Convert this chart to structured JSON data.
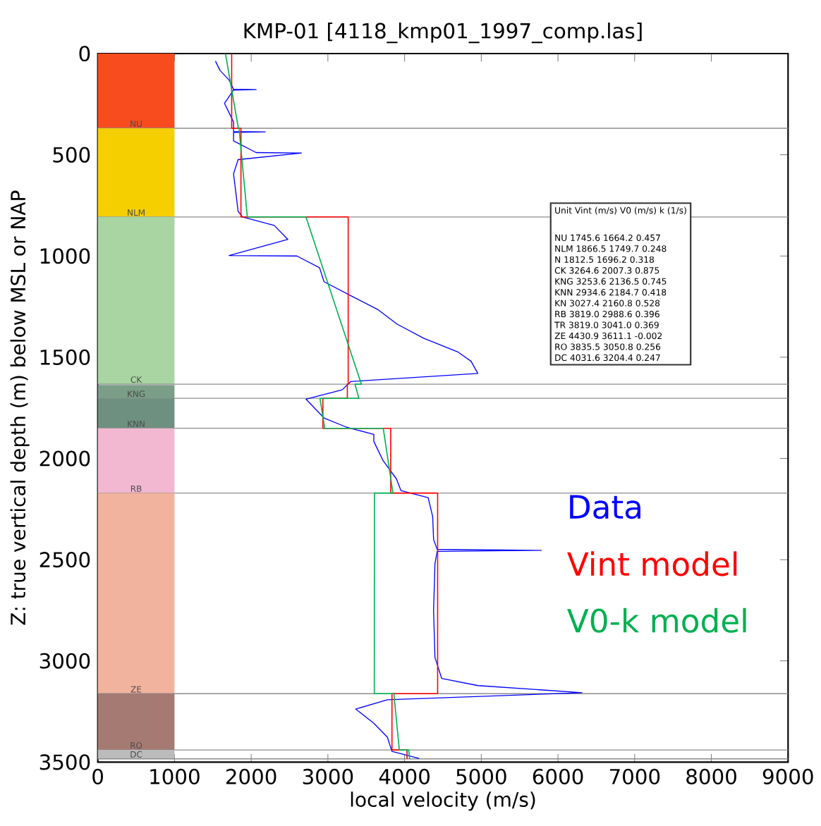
{
  "chart_data": {
    "type": "line",
    "title": "KMP-01 [4118_kmp01_1997_comp.las]",
    "xlabel": "local velocity (m/s)",
    "ylabel": "Z: true vertical depth (m) below MSL or NAP",
    "xlim": [
      0,
      9000
    ],
    "xticks": [
      0,
      1000,
      2000,
      3000,
      4000,
      5000,
      6000,
      7000,
      8000,
      9000
    ],
    "ylim": [
      3500,
      0
    ],
    "yticks": [
      0,
      500,
      1000,
      1500,
      2000,
      2500,
      3000,
      3500
    ],
    "legend": "right",
    "line_style": "solid",
    "marker": "none",
    "series": [
      {
        "name": "Data",
        "color": "#0000ff",
        "x": [
          1534,
          1593,
          1711,
          1770,
          2065,
          1770,
          1652,
          1711,
          1770,
          1770,
          2183,
          1770,
          1770,
          2065,
          2655,
          1829,
          1770,
          1800,
          1829,
          1888,
          2301,
          2478,
          1711,
          2596,
          2891,
          2950,
          3304,
          3658,
          3900,
          4248,
          4700,
          4867,
          4955,
          3300,
          3186,
          2714,
          2832,
          2950,
          3245,
          3599,
          3599,
          3717,
          3894,
          3953,
          4307,
          4366,
          4378,
          4425,
          5782,
          4425,
          4396,
          4378,
          4396,
          4484,
          4956,
          6313,
          3776,
          3363,
          3599,
          3776,
          3835,
          4189
        ],
        "values": [
          37,
          83,
          130,
          176,
          178,
          180,
          246,
          292,
          338,
          385,
          387,
          389,
          431,
          489,
          491,
          524,
          594,
          686,
          779,
          807,
          849,
          918,
          998,
          1000,
          1058,
          1127,
          1197,
          1266,
          1336,
          1406,
          1475,
          1520,
          1580,
          1620,
          1661,
          1707,
          1754,
          1800,
          1846,
          1881,
          1916,
          2009,
          2101,
          2159,
          2194,
          2287,
          2400,
          2449,
          2454,
          2459,
          2519,
          2751,
          2983,
          3087,
          3122,
          3157,
          3192,
          3238,
          3308,
          3377,
          3447,
          3482
        ]
      },
      {
        "name": "Vint model",
        "color": "#ff0000",
        "x": [
          1745.6,
          1745.6,
          1866.5,
          1866.5,
          3264.6,
          3264.6,
          3253.6,
          3253.6,
          2934.6,
          2934.6,
          3819.0,
          3819.0,
          4430.9,
          4430.9,
          3835.5,
          3835.5,
          4031.6,
          4031.6
        ],
        "values": [
          0,
          369,
          369,
          807,
          807,
          1633,
          1633,
          1703,
          1703,
          1851,
          1851,
          2171,
          2171,
          3162,
          3162,
          3440,
          3440,
          3484
        ]
      },
      {
        "name": "V0-k model",
        "color": "#00b050",
        "x": [
          1664.2,
          1832.8,
          1841.2,
          1949.8,
          2713.4,
          3436.2,
          3353.0,
          3404.2,
          2896.5,
          2958.4,
          3721.6,
          3848.3,
          3606.8,
          3604.8,
          3860.3,
          3931.4,
          4054.1,
          4065.0
        ],
        "values": [
          0,
          369,
          369,
          807,
          807,
          1633,
          1633,
          1703,
          1703,
          1851,
          1851,
          2171,
          2171,
          3162,
          3162,
          3440,
          3440,
          3484
        ]
      }
    ],
    "bands": [
      {
        "axis": "y",
        "from": 0,
        "to": 369,
        "label": "NU",
        "color": "#f84c1e"
      },
      {
        "axis": "y",
        "from": 369,
        "to": 807,
        "label": "NLM",
        "color": "#f5cf00"
      },
      {
        "axis": "y",
        "from": 807,
        "to": 1633,
        "label": "CK",
        "color": "#a8d5a2"
      },
      {
        "axis": "y",
        "from": 1637,
        "to": 1703,
        "label": "KNG",
        "color": "#7a9e88"
      },
      {
        "axis": "y",
        "from": 1703,
        "to": 1851,
        "label": "KNN",
        "color": "#6e9080"
      },
      {
        "axis": "y",
        "from": 1851,
        "to": 2171,
        "label": "RB",
        "color": "#f2b8d2"
      },
      {
        "axis": "y",
        "from": 2171,
        "to": 3162,
        "label": "ZE",
        "color": "#f2b39e"
      },
      {
        "axis": "y",
        "from": 3162,
        "to": 3440,
        "label": "RO",
        "color": "#a57a72"
      },
      {
        "axis": "y",
        "from": 3440,
        "to": 3484,
        "label": "DC",
        "color": "#bbbbbb"
      }
    ],
    "annotations": [
      "Unit    Vint (m/s)    V0 (m/s)    k (1/s)",
      "NU 1745.6 1664.2 0.457",
      "NLM 1866.5 1749.7 0.248",
      "N 1812.5 1696.2 0.318",
      "CK 3264.6 2007.3 0.875",
      "KNG 3253.6 2136.5 0.745",
      "KNN 2934.6 2184.7 0.418",
      "KN 3027.4 2160.8 0.528",
      "RB 3819.0 2988.6 0.396",
      "TR 3819.0 3041.0 0.369",
      "ZE 4430.9 3611.1 -0.002",
      "RO 3835.5 3050.8 0.256",
      "DC 4031.6 3204.4 0.247"
    ]
  }
}
